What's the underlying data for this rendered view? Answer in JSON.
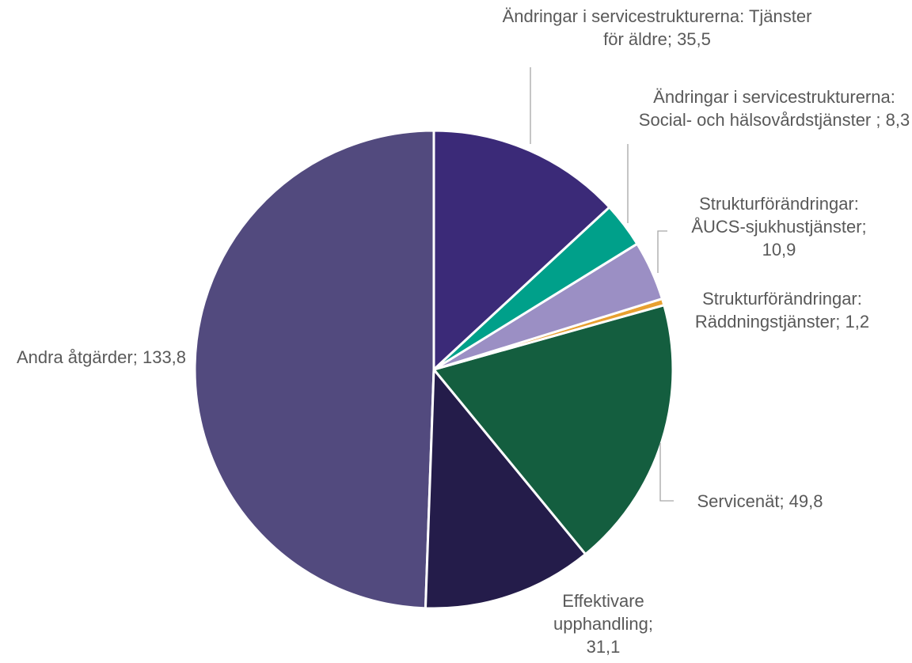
{
  "chart_data": {
    "type": "pie",
    "categories": [
      "Ändringar i servicestrukturerna: Tjänster för äldre",
      "Ändringar i servicestrukturerna: Social- och hälsovårdstjänster ",
      "Strukturförändringar: ÅUCS-sjukhustjänster",
      "Strukturförändringar: Räddningstjänster",
      "Servicenät",
      "Effektivare upphandling",
      "Andra åtgärder"
    ],
    "values": [
      35.5,
      8.3,
      10.9,
      1.2,
      49.8,
      31.1,
      133.8
    ],
    "value_labels": [
      "35,5",
      "8,3",
      "10,9",
      "1,2",
      "49,8",
      "31,1",
      "133,8"
    ],
    "label_separator": "; ",
    "colors": [
      "#3b2a78",
      "#00a08a",
      "#9b8fc4",
      "#e8a030",
      "#145e3f",
      "#241c4a",
      "#524a7e"
    ]
  }
}
